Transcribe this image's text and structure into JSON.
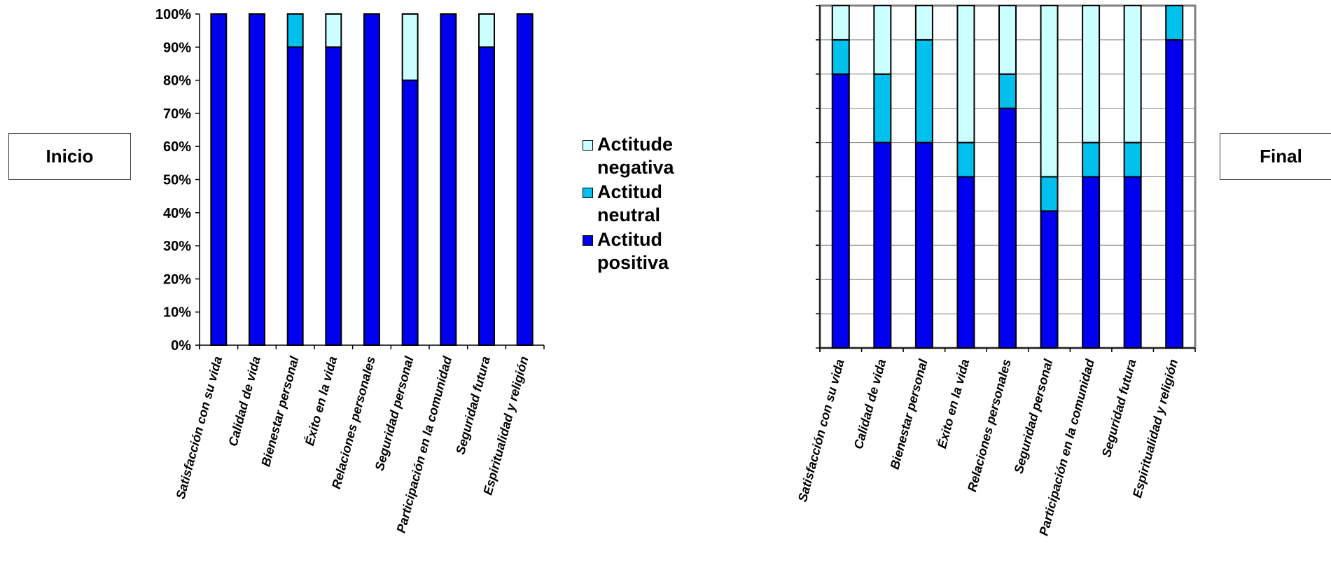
{
  "chart_data": [
    {
      "type": "bar",
      "stacked": true,
      "percent": true,
      "title": "",
      "side_label": "Inicio",
      "categories": [
        "Satisfacción con su vida",
        "Calidad de vida",
        "Bienestar personal",
        "Éxito en la vida",
        "Relaciones personales",
        "Seguridad personal",
        "Participación en la comunidad",
        "Seguridad futura",
        "Espiritualidad y religión"
      ],
      "series": [
        {
          "name": "Actitud positiva",
          "color": "#0000ee",
          "values": [
            100,
            100,
            90,
            90,
            100,
            80,
            100,
            90,
            100
          ]
        },
        {
          "name": "Actitud neutral",
          "color": "#00c0ee",
          "values": [
            0,
            0,
            10,
            0,
            0,
            0,
            0,
            0,
            0
          ]
        },
        {
          "name": "Actitude negativa",
          "color": "#ccffff",
          "values": [
            0,
            0,
            0,
            10,
            0,
            20,
            0,
            10,
            0
          ]
        }
      ],
      "ylim": [
        0,
        100
      ],
      "yticks": [
        "0%",
        "10%",
        "20%",
        "30%",
        "40%",
        "50%",
        "60%",
        "70%",
        "80%",
        "90%",
        "100%"
      ],
      "grid": false
    },
    {
      "type": "bar",
      "stacked": true,
      "percent": true,
      "title": "",
      "side_label": "Final",
      "categories": [
        "Satisfacción con su vida",
        "Calidad de vida",
        "Bienestar personal",
        "Éxito en la vida",
        "Relaciones personales",
        "Seguridad personal",
        "Participación en la comunidad",
        "Seguridad futura",
        "Espiritualidad y religión"
      ],
      "series": [
        {
          "name": "Actitud positiva",
          "color": "#0000ee",
          "values": [
            80,
            60,
            60,
            50,
            70,
            40,
            50,
            50,
            90
          ]
        },
        {
          "name": "Actitud neutral",
          "color": "#00c0ee",
          "values": [
            10,
            20,
            30,
            10,
            10,
            10,
            10,
            10,
            10
          ]
        },
        {
          "name": "Actitude negativa",
          "color": "#ccffff",
          "values": [
            10,
            20,
            10,
            40,
            20,
            50,
            40,
            40,
            0
          ]
        }
      ],
      "ylim": [
        0,
        100
      ],
      "grid": true
    }
  ],
  "legend": [
    {
      "label": "Actitude negativa",
      "color": "#ccffff"
    },
    {
      "label": "Actitud neutral",
      "color": "#00c0ee"
    },
    {
      "label": "Actitud positiva",
      "color": "#0000ee"
    }
  ]
}
